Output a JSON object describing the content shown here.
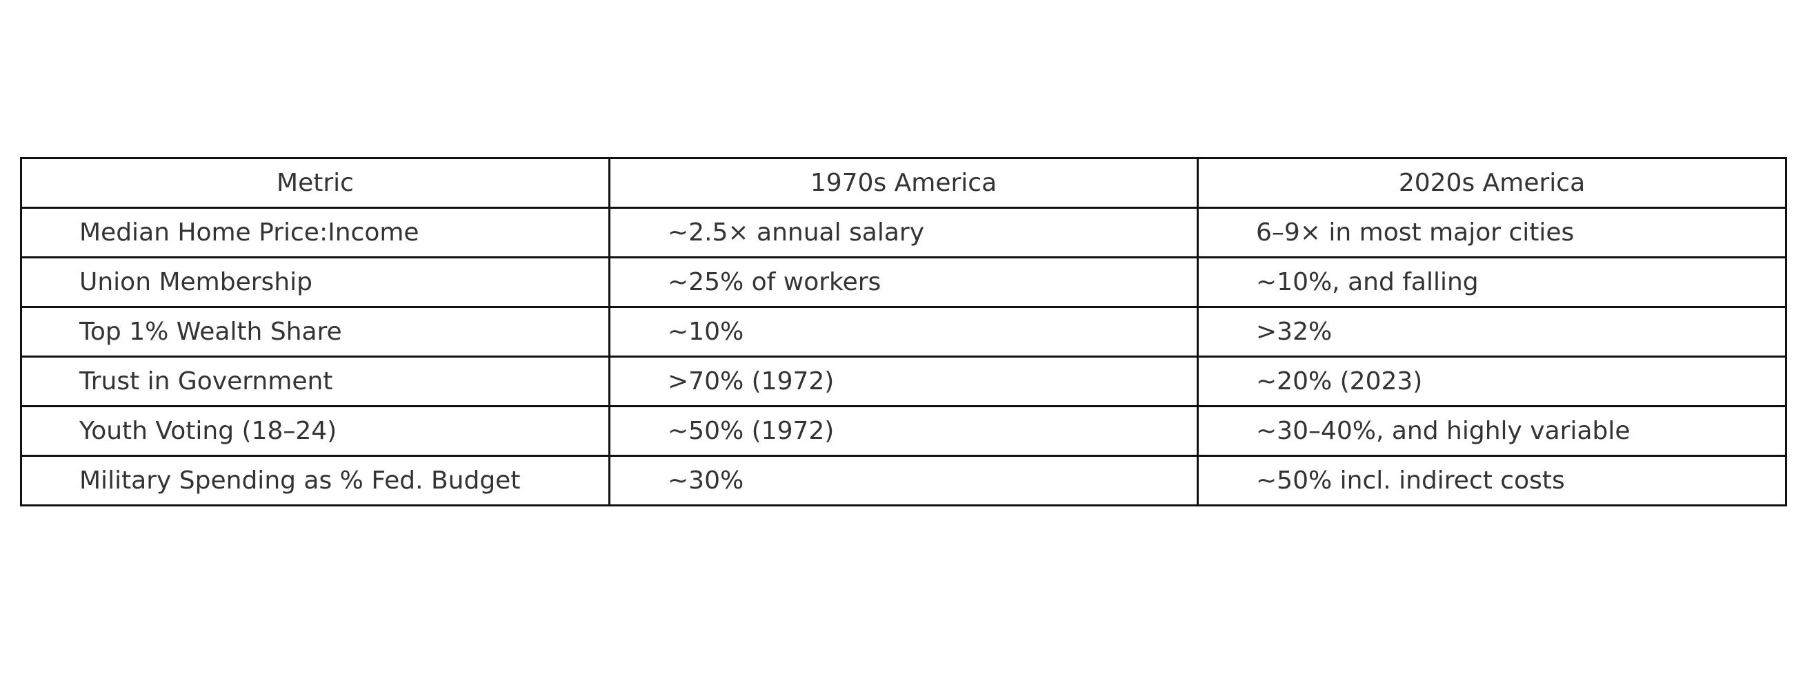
{
  "chart_data": {
    "type": "table",
    "columns": [
      "Metric",
      "1970s America",
      "2020s America"
    ],
    "rows": [
      [
        "Median Home Price:Income",
        "~2.5× annual salary",
        "6–9× in most major cities"
      ],
      [
        "Union Membership",
        "~25% of workers",
        "~10%, and falling"
      ],
      [
        "Top 1% Wealth Share",
        "~10%",
        ">32%"
      ],
      [
        "Trust in Government",
        ">70% (1972)",
        "~20% (2023)"
      ],
      [
        "Youth Voting (18–24)",
        "~50% (1972)",
        "~30–40%, and highly variable"
      ],
      [
        "Military Spending as % Fed. Budget",
        "~30%",
        "~50% incl. indirect costs"
      ]
    ]
  }
}
